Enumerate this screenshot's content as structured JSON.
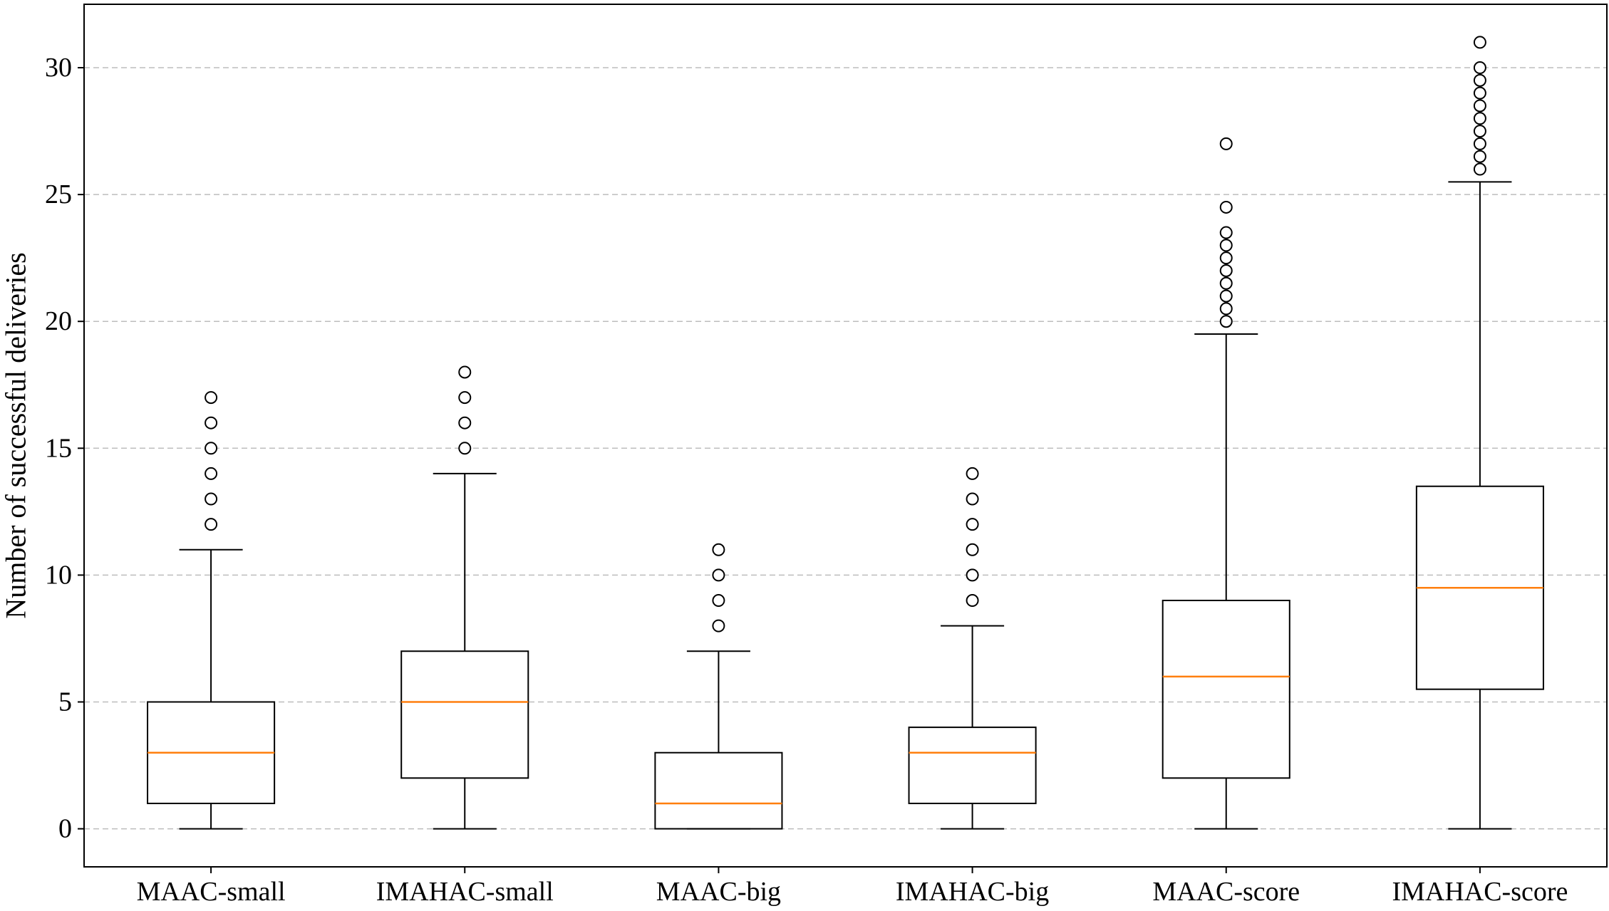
{
  "chart_data": {
    "type": "box",
    "xlabel": "",
    "ylabel": "Number of successful deliveries",
    "ylim": [
      -1.5,
      32.5
    ],
    "yticks": [
      "0",
      "5",
      "10",
      "15",
      "20",
      "25",
      "30"
    ],
    "grid": {
      "axis": "y",
      "style": "dashed",
      "on": true
    },
    "colors": {
      "box": "#000000",
      "median": "#ff7f0e",
      "grid": "#bdbdbd",
      "flier_fill": "#ffffff"
    },
    "categories": [
      "MAAC-small",
      "IMAHAC-small",
      "MAAC-big",
      "IMAHAC-big",
      "MAAC-score",
      "IMAHAC-score"
    ],
    "boxes": [
      {
        "label": "MAAC-small",
        "whisker_low": 0,
        "q1": 1,
        "median": 3,
        "q3": 5,
        "whisker_high": 11,
        "outliers": [
          12,
          13,
          14,
          15,
          16,
          17
        ]
      },
      {
        "label": "IMAHAC-small",
        "whisker_low": 0,
        "q1": 2,
        "median": 5,
        "q3": 7,
        "whisker_high": 14,
        "outliers": [
          15,
          16,
          17,
          18
        ]
      },
      {
        "label": "MAAC-big",
        "whisker_low": 0,
        "q1": 0,
        "median": 1,
        "q3": 3,
        "whisker_high": 7,
        "outliers": [
          8,
          9,
          10,
          11
        ]
      },
      {
        "label": "IMAHAC-big",
        "whisker_low": 0,
        "q1": 1,
        "median": 3,
        "q3": 4,
        "whisker_high": 8,
        "outliers": [
          9,
          10,
          11,
          12,
          13,
          14
        ]
      },
      {
        "label": "MAAC-score",
        "whisker_low": 0,
        "q1": 2,
        "median": 6,
        "q3": 9,
        "whisker_high": 19.5,
        "outliers": [
          20,
          20.5,
          21,
          21.5,
          22,
          22.5,
          23,
          23.5,
          24.5,
          27
        ]
      },
      {
        "label": "IMAHAC-score",
        "whisker_low": 0,
        "q1": 5.5,
        "median": 9.5,
        "q3": 13.5,
        "whisker_high": 25.5,
        "outliers": [
          26,
          26.5,
          27,
          27.5,
          28,
          28.5,
          29,
          29.5,
          30,
          31
        ]
      }
    ]
  }
}
